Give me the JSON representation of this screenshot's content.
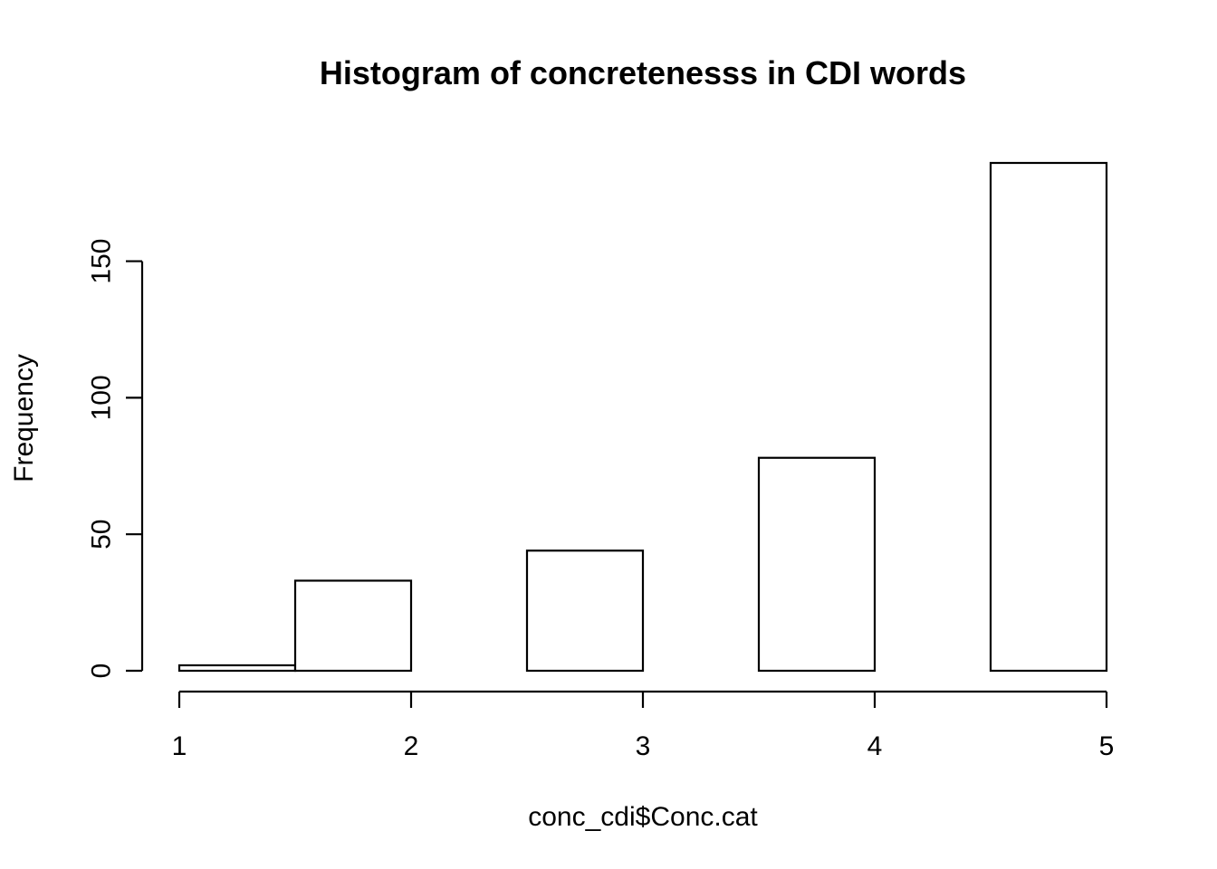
{
  "chart_data": {
    "type": "bar",
    "title": "Histogram of concretenesss in CDI words",
    "xlabel": "conc_cdi$Conc.cat",
    "ylabel": "Frequency",
    "bins": [
      {
        "from": 1.0,
        "to": 1.5,
        "value": 2
      },
      {
        "from": 1.5,
        "to": 2.0,
        "value": 33
      },
      {
        "from": 2.0,
        "to": 2.5,
        "value": 0
      },
      {
        "from": 2.5,
        "to": 3.0,
        "value": 44
      },
      {
        "from": 3.0,
        "to": 3.5,
        "value": 0
      },
      {
        "from": 3.5,
        "to": 4.0,
        "value": 78
      },
      {
        "from": 4.0,
        "to": 4.5,
        "value": 0
      },
      {
        "from": 4.5,
        "to": 5.0,
        "value": 186
      }
    ],
    "xlim": [
      1,
      5
    ],
    "ylim": [
      0,
      186
    ],
    "xticks": [
      1,
      2,
      3,
      4,
      5
    ],
    "xtick_labels": [
      "1",
      "2",
      "3",
      "4",
      "5"
    ],
    "yticks": [
      0,
      50,
      100,
      150
    ],
    "ytick_labels": [
      "0",
      "50",
      "100",
      "150"
    ],
    "grid": false,
    "colors": {
      "bar_fill": "#ffffff",
      "bar_stroke": "#000000",
      "axis": "#000000"
    }
  }
}
